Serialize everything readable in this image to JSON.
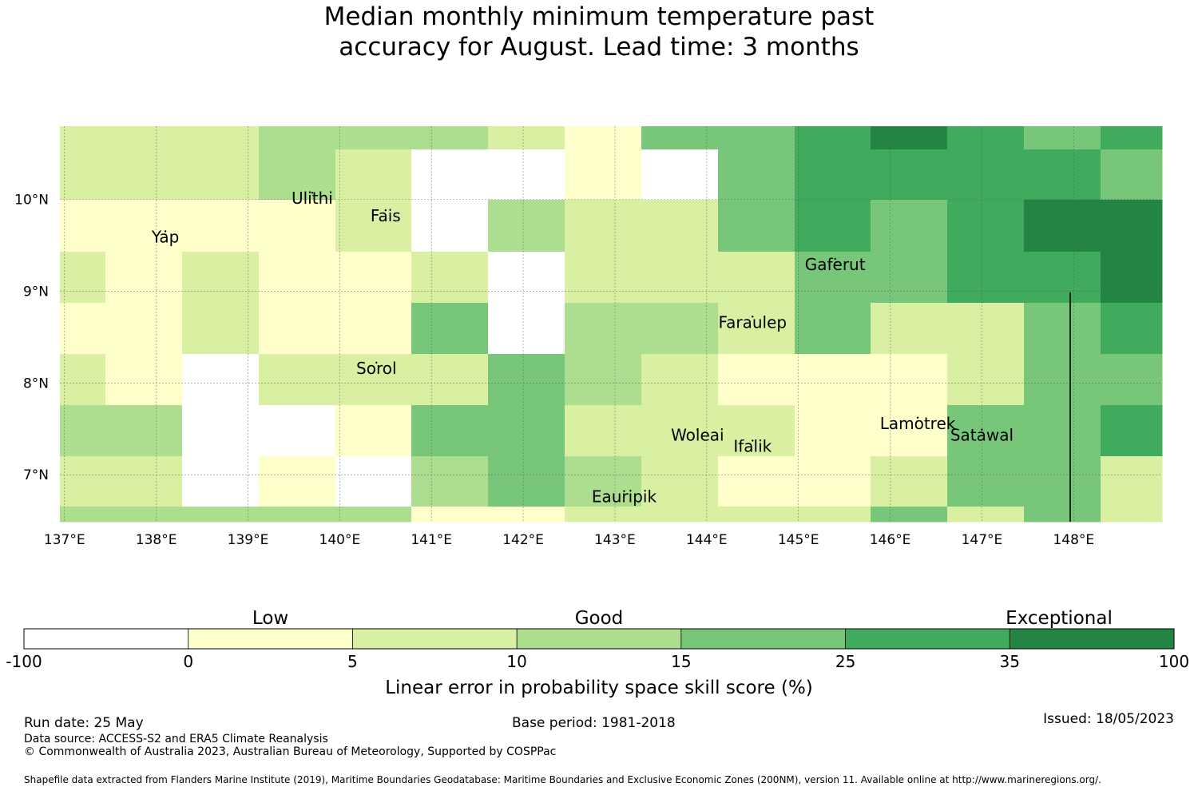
{
  "title": {
    "line1": "Median monthly minimum temperature past",
    "line2": "accuracy for August. Lead time: 3 months"
  },
  "map": {
    "lon_range": [
      137,
      149
    ],
    "lat_range": [
      6.5,
      10.8
    ],
    "x_ticks": [
      "137°E",
      "138°E",
      "139°E",
      "140°E",
      "141°E",
      "142°E",
      "143°E",
      "144°E",
      "145°E",
      "146°E",
      "147°E",
      "148°E"
    ],
    "y_ticks": [
      "10°N",
      "9°N",
      "8°N",
      "7°N"
    ],
    "grid": true,
    "colors": [
      "#ffffff",
      "#ffffcc",
      "#d9f0a3",
      "#addd8e",
      "#78c679",
      "#41ab5d",
      "#238443"
    ],
    "islands": [
      {
        "name": "Yap",
        "lon": 138.1,
        "lat": 9.53
      },
      {
        "name": "Ulithi",
        "lon": 139.7,
        "lat": 9.95
      },
      {
        "name": "Fais",
        "lon": 140.5,
        "lat": 9.76
      },
      {
        "name": "Sorol",
        "lon": 140.4,
        "lat": 8.1
      },
      {
        "name": "Gaferut",
        "lon": 145.4,
        "lat": 9.23
      },
      {
        "name": "Faraulep",
        "lon": 144.5,
        "lat": 8.6
      },
      {
        "name": "Woleai",
        "lon": 143.9,
        "lat": 7.37
      },
      {
        "name": "Ifalik",
        "lon": 144.5,
        "lat": 7.25
      },
      {
        "name": "Lamotrek",
        "lon": 146.3,
        "lat": 7.5
      },
      {
        "name": "Satawal",
        "lon": 147.0,
        "lat": 7.37
      },
      {
        "name": "Eauripik",
        "lon": 143.1,
        "lat": 6.7
      }
    ]
  },
  "colorbar": {
    "boundaries": [
      "-100",
      "0",
      "5",
      "10",
      "15",
      "25",
      "35",
      "100"
    ],
    "colors": [
      "#ffffff",
      "#ffffcc",
      "#d9f0a3",
      "#addd8e",
      "#78c679",
      "#41ab5d",
      "#238443"
    ],
    "categories": [
      "Low",
      "Good",
      "Exceptional"
    ],
    "label": "Linear error in probability space skill score (%)"
  },
  "footer": {
    "run_date": "Run date: 25 May",
    "base_period": "Base period: 1981-2018",
    "issued": "Issued: 18/05/2023",
    "data_source": "Data source: ACCESS-S2 and ERA5 Climate Reanalysis",
    "copyright": "© Commonwealth of Australia 2023, Australian Bureau of Meteorology, Supported by COSPPac",
    "shapefile": "Shapefile data extracted from Flanders Marine Institute (2019), Maritime Boundaries Geodatabase: Maritime Boundaries and Exclusive Economic Zones (200NM), version 11. Available online at http://www.marineregions.org/."
  }
}
